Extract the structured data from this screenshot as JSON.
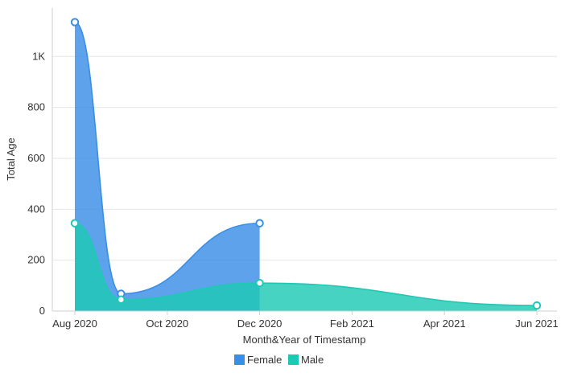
{
  "chart_data": {
    "type": "area",
    "title": "",
    "xlabel": "Month&Year of Timestamp",
    "ylabel": "Total Age",
    "x_ticks": [
      "Aug 2020",
      "Oct 2020",
      "Dec 2020",
      "Feb 2021",
      "Apr 2021",
      "Jun 2021"
    ],
    "y_ticks": [
      "0",
      "200",
      "400",
      "600",
      "800",
      "1K"
    ],
    "ylim": [
      0,
      1200
    ],
    "grid": "horizontal",
    "legend": "bottom-center",
    "series": [
      {
        "name": "Female",
        "color": "#3a8ee6",
        "points": [
          {
            "x": "Aug 2020",
            "y": 1135
          },
          {
            "x": "Sep 2020",
            "y": 68
          },
          {
            "x": "Dec 2020",
            "y": 345
          }
        ]
      },
      {
        "name": "Male",
        "color": "#1ec9b4",
        "points": [
          {
            "x": "Aug 2020",
            "y": 345
          },
          {
            "x": "Sep 2020",
            "y": 45
          },
          {
            "x": "Dec 2020",
            "y": 110
          },
          {
            "x": "Jun 2021",
            "y": 22
          }
        ]
      }
    ]
  }
}
